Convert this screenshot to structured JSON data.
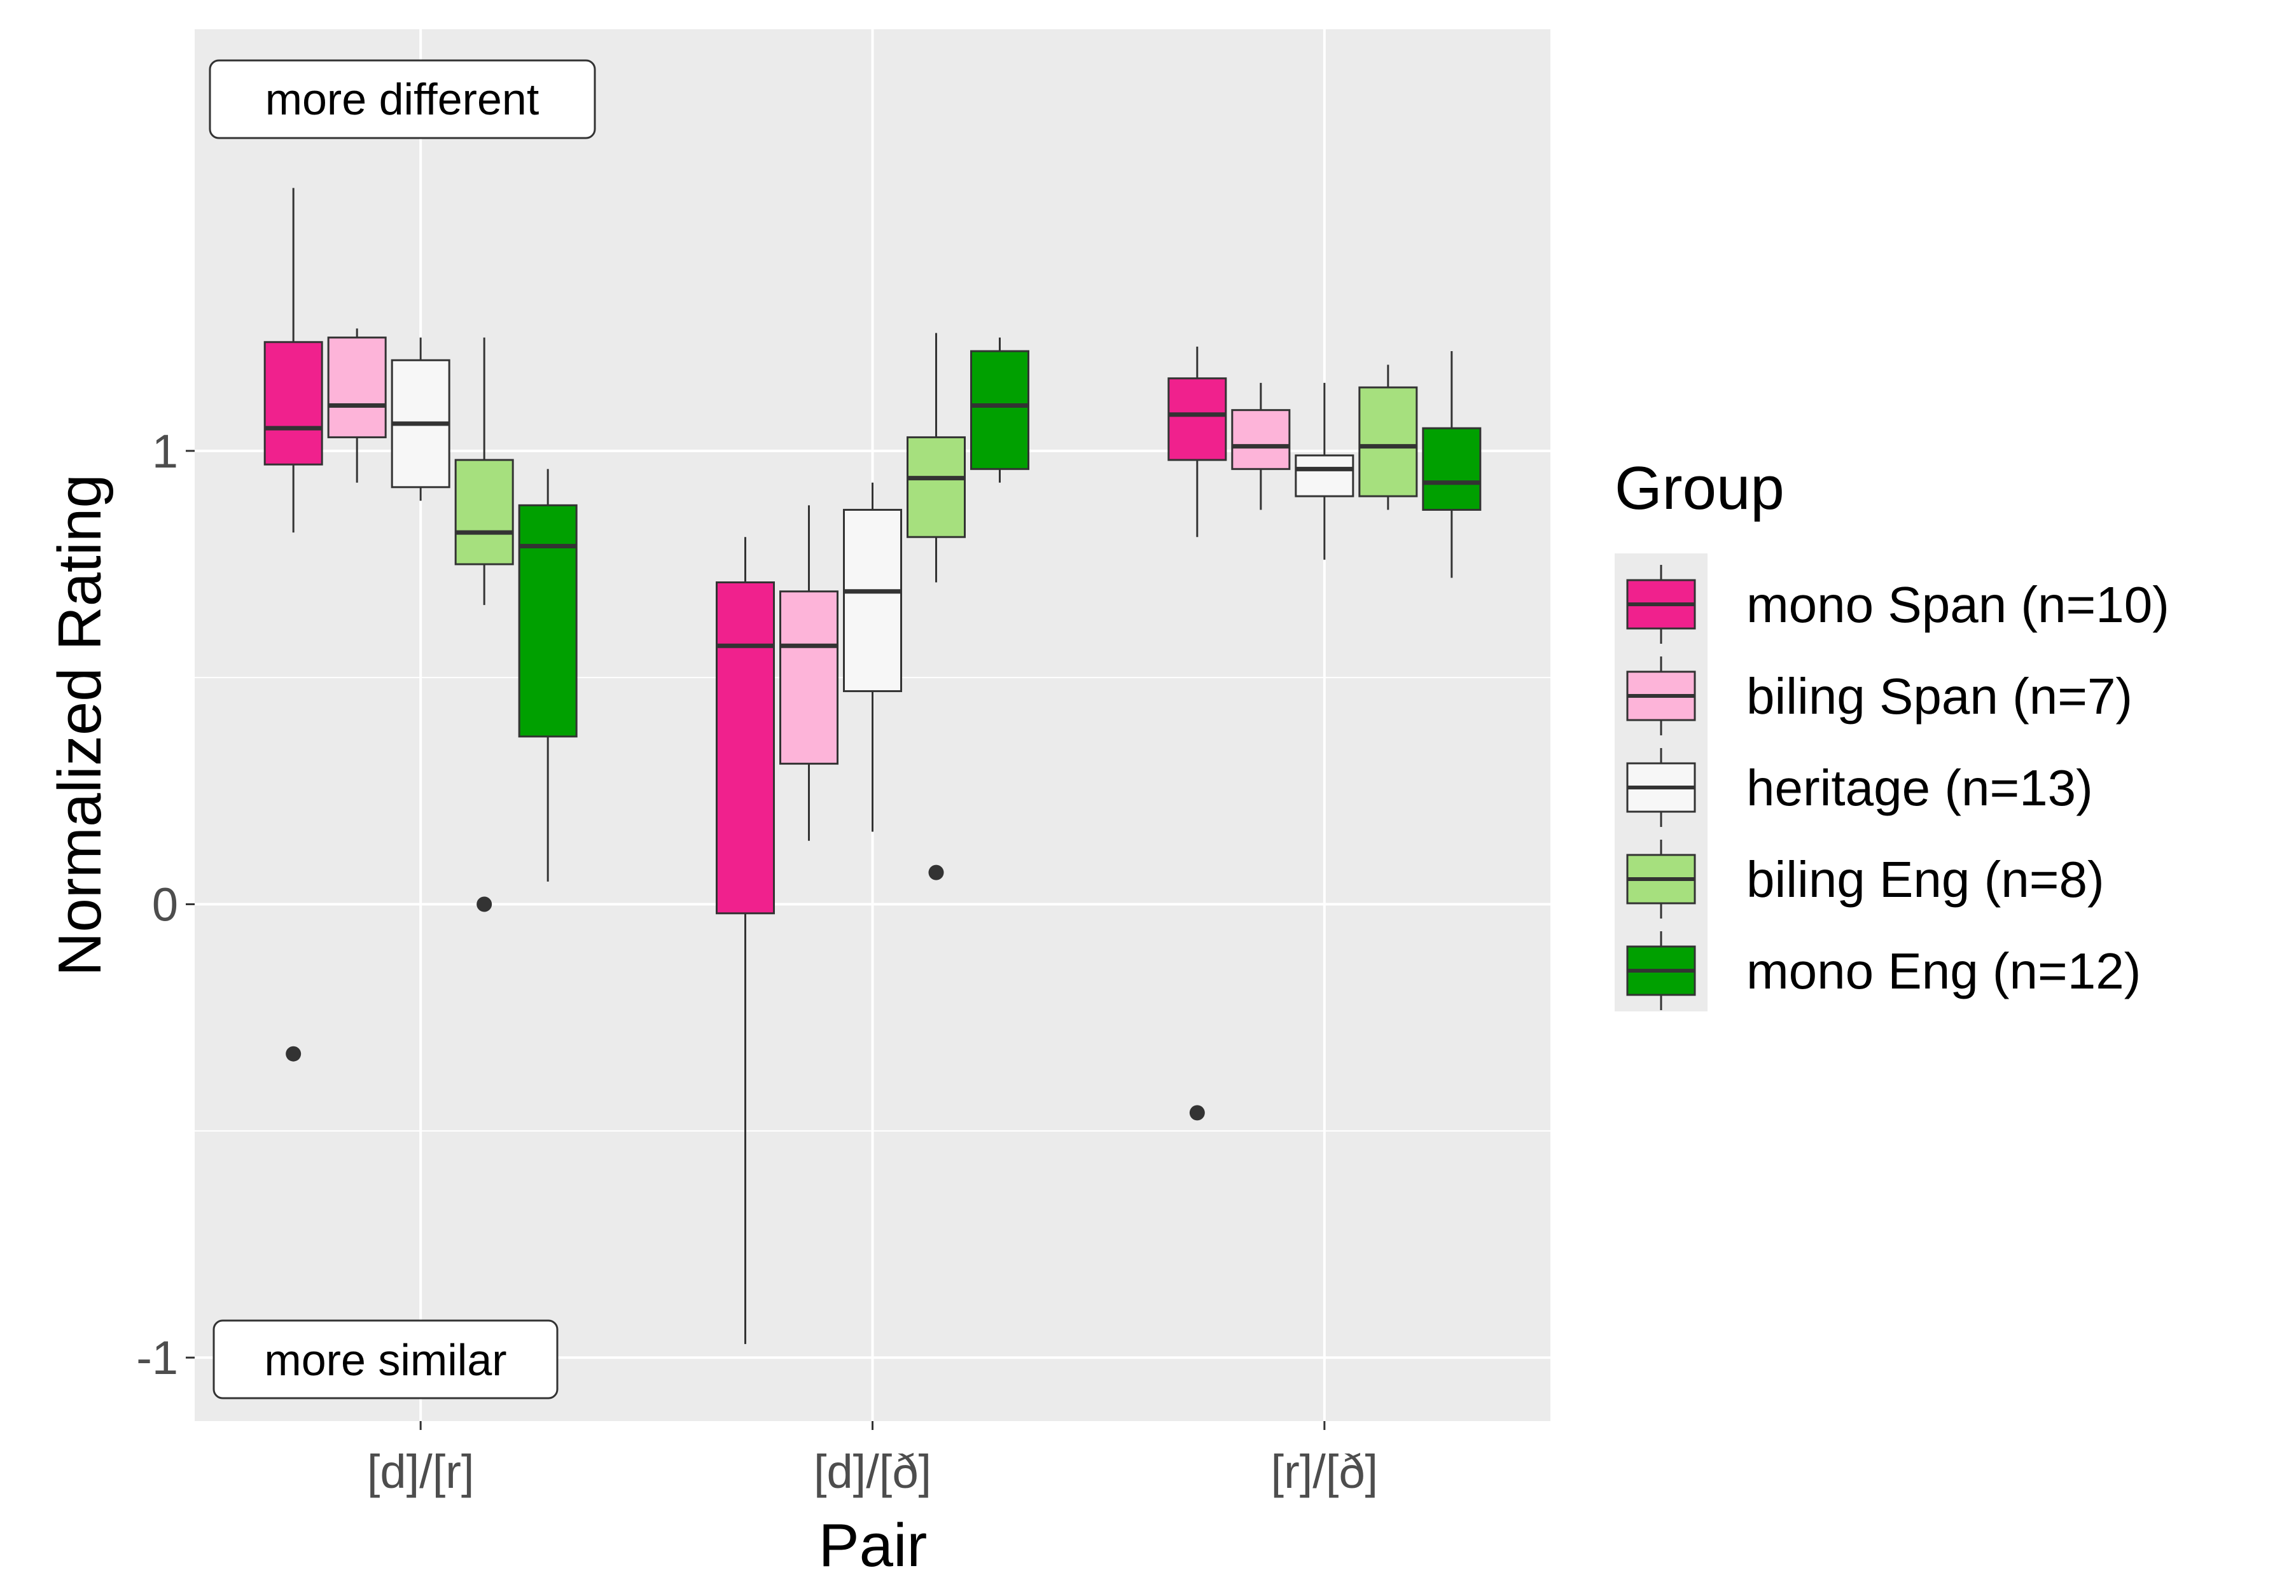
{
  "chart_data": {
    "type": "boxplot",
    "xlabel": "Pair",
    "ylabel": "Normalized Rating",
    "ylim": [
      -1.14,
      1.93
    ],
    "y_ticks": [
      {
        "value": -1,
        "label": "-1"
      },
      {
        "value": 0,
        "label": "0"
      },
      {
        "value": 1,
        "label": "1"
      }
    ],
    "categories": [
      "[d]/[r]",
      "[d]/[ð]",
      "[r]/[ð]"
    ],
    "annotations": {
      "top": "more different",
      "bottom": "more similar"
    },
    "legend": {
      "title": "Group",
      "position": "right"
    },
    "series": [
      {
        "name": "mono Span (n=10)",
        "color": "#f0218d",
        "boxes": [
          {
            "whisker_low": 0.82,
            "q1": 0.97,
            "median": 1.05,
            "q3": 1.24,
            "whisker_high": 1.58,
            "outliers": [
              -0.33
            ]
          },
          {
            "whisker_low": -0.97,
            "q1": -0.02,
            "median": 0.57,
            "q3": 0.71,
            "whisker_high": 0.81,
            "outliers": []
          },
          {
            "whisker_low": 0.81,
            "q1": 0.98,
            "median": 1.08,
            "q3": 1.16,
            "whisker_high": 1.23,
            "outliers": [
              -0.46
            ]
          }
        ]
      },
      {
        "name": "biling Span (n=7)",
        "color": "#fdb4d9",
        "boxes": [
          {
            "whisker_low": 0.93,
            "q1": 1.03,
            "median": 1.1,
            "q3": 1.25,
            "whisker_high": 1.27,
            "outliers": []
          },
          {
            "whisker_low": 0.14,
            "q1": 0.31,
            "median": 0.57,
            "q3": 0.69,
            "whisker_high": 0.88,
            "outliers": []
          },
          {
            "whisker_low": 0.87,
            "q1": 0.96,
            "median": 1.01,
            "q3": 1.09,
            "whisker_high": 1.15,
            "outliers": []
          }
        ]
      },
      {
        "name": "heritage (n=13)",
        "color": "#f7f7f7",
        "boxes": [
          {
            "whisker_low": 0.89,
            "q1": 0.92,
            "median": 1.06,
            "q3": 1.2,
            "whisker_high": 1.25,
            "outliers": []
          },
          {
            "whisker_low": 0.16,
            "q1": 0.47,
            "median": 0.69,
            "q3": 0.87,
            "whisker_high": 0.93,
            "outliers": []
          },
          {
            "whisker_low": 0.76,
            "q1": 0.9,
            "median": 0.96,
            "q3": 0.99,
            "whisker_high": 1.15,
            "outliers": []
          }
        ]
      },
      {
        "name": "biling Eng (n=8)",
        "color": "#a6e07e",
        "boxes": [
          {
            "whisker_low": 0.66,
            "q1": 0.75,
            "median": 0.82,
            "q3": 0.98,
            "whisker_high": 1.25,
            "outliers": [
              0.0
            ]
          },
          {
            "whisker_low": 0.71,
            "q1": 0.81,
            "median": 0.94,
            "q3": 1.03,
            "whisker_high": 1.26,
            "outliers": [
              0.07
            ]
          },
          {
            "whisker_low": 0.87,
            "q1": 0.9,
            "median": 1.01,
            "q3": 1.14,
            "whisker_high": 1.19,
            "outliers": []
          }
        ]
      },
      {
        "name": "mono Eng (n=12)",
        "color": "#00a000",
        "boxes": [
          {
            "whisker_low": 0.05,
            "q1": 0.37,
            "median": 0.79,
            "q3": 0.88,
            "whisker_high": 0.96,
            "outliers": []
          },
          {
            "whisker_low": 0.93,
            "q1": 0.96,
            "median": 1.1,
            "q3": 1.22,
            "whisker_high": 1.25,
            "outliers": []
          },
          {
            "whisker_low": 0.72,
            "q1": 0.87,
            "median": 0.93,
            "q3": 1.05,
            "whisker_high": 1.22,
            "outliers": []
          }
        ]
      }
    ]
  }
}
